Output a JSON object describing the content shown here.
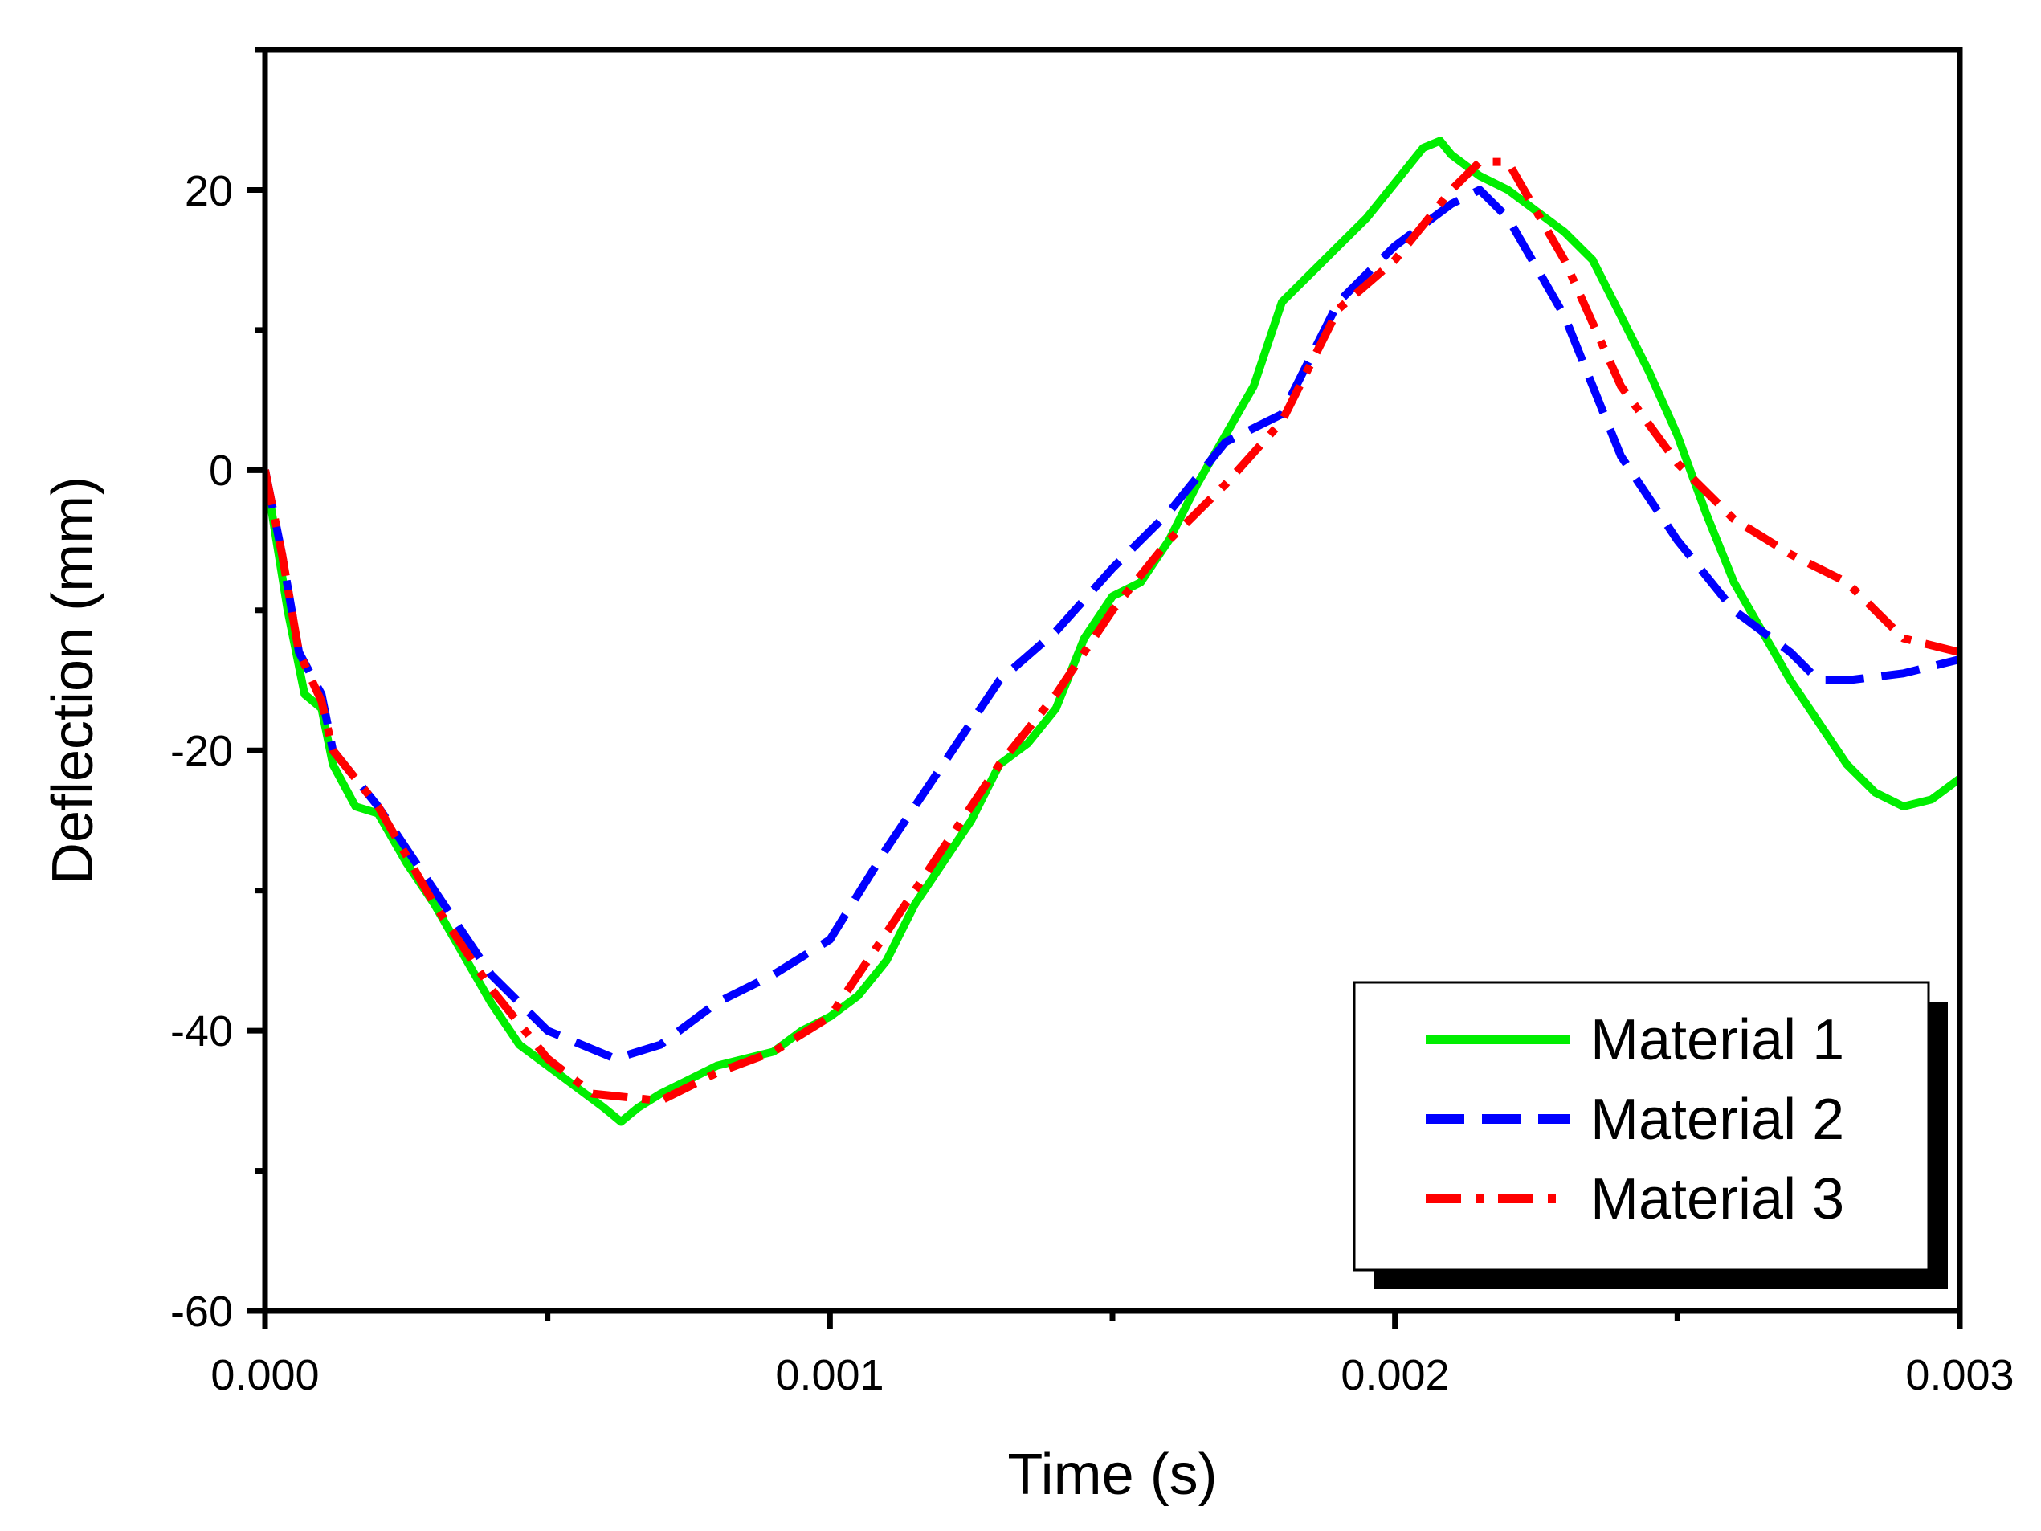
{
  "chart_data": {
    "type": "line",
    "title": "",
    "xlabel": "Time (s)",
    "ylabel": "Deflection (mm)",
    "xlim": [
      0,
      0.003
    ],
    "ylim": [
      -60,
      30
    ],
    "xticks": [
      0.0,
      0.001,
      0.002,
      0.003
    ],
    "xtick_labels": [
      "0.000",
      "0.001",
      "0.002",
      "0.003"
    ],
    "yticks": [
      -60,
      -40,
      -20,
      0,
      20
    ],
    "ytick_labels": [
      "-60",
      "-40",
      "-20",
      "0",
      "20"
    ],
    "grid": false,
    "legend_position": "bottom-right",
    "series": [
      {
        "name": "Material 1",
        "color": "#00ee00",
        "dash": "solid",
        "points": [
          [
            0.0,
            0.0
          ],
          [
            4e-05,
            -10.0
          ],
          [
            7e-05,
            -16.0
          ],
          [
            0.0001,
            -17.0
          ],
          [
            0.00012,
            -21.0
          ],
          [
            0.00016,
            -24.0
          ],
          [
            0.0002,
            -24.5
          ],
          [
            0.00025,
            -28.0
          ],
          [
            0.0003,
            -31.0
          ],
          [
            0.00035,
            -34.5
          ],
          [
            0.0004,
            -38.0
          ],
          [
            0.00045,
            -41.0
          ],
          [
            0.0005,
            -42.5
          ],
          [
            0.00055,
            -44.0
          ],
          [
            0.0006,
            -45.5
          ],
          [
            0.00063,
            -46.5
          ],
          [
            0.00066,
            -45.5
          ],
          [
            0.0007,
            -44.5
          ],
          [
            0.00075,
            -43.5
          ],
          [
            0.0008,
            -42.5
          ],
          [
            0.00085,
            -42.0
          ],
          [
            0.0009,
            -41.5
          ],
          [
            0.00095,
            -40.0
          ],
          [
            0.001,
            -39.0
          ],
          [
            0.00105,
            -37.5
          ],
          [
            0.0011,
            -35.0
          ],
          [
            0.00115,
            -31.0
          ],
          [
            0.0012,
            -28.0
          ],
          [
            0.00125,
            -25.0
          ],
          [
            0.0013,
            -21.0
          ],
          [
            0.00135,
            -19.5
          ],
          [
            0.0014,
            -17.0
          ],
          [
            0.00145,
            -12.0
          ],
          [
            0.0015,
            -9.0
          ],
          [
            0.00155,
            -8.0
          ],
          [
            0.0016,
            -5.0
          ],
          [
            0.00165,
            -1.0
          ],
          [
            0.0017,
            2.5
          ],
          [
            0.00175,
            6.0
          ],
          [
            0.0018,
            12.0
          ],
          [
            0.00185,
            14.0
          ],
          [
            0.0019,
            16.0
          ],
          [
            0.00195,
            18.0
          ],
          [
            0.002,
            20.5
          ],
          [
            0.00205,
            23.0
          ],
          [
            0.00208,
            23.5
          ],
          [
            0.0021,
            22.5
          ],
          [
            0.00215,
            21.0
          ],
          [
            0.0022,
            20.0
          ],
          [
            0.00225,
            18.5
          ],
          [
            0.0023,
            17.0
          ],
          [
            0.00235,
            15.0
          ],
          [
            0.0024,
            11.0
          ],
          [
            0.00245,
            7.0
          ],
          [
            0.0025,
            2.5
          ],
          [
            0.00255,
            -3.0
          ],
          [
            0.0026,
            -8.0
          ],
          [
            0.00265,
            -11.5
          ],
          [
            0.0027,
            -15.0
          ],
          [
            0.00275,
            -18.0
          ],
          [
            0.0028,
            -21.0
          ],
          [
            0.00285,
            -23.0
          ],
          [
            0.0029,
            -24.0
          ],
          [
            0.00295,
            -23.5
          ],
          [
            0.003,
            -22.0
          ]
        ]
      },
      {
        "name": "Material 2",
        "color": "#0000ff",
        "dash": "dashed",
        "points": [
          [
            0.0,
            0.0
          ],
          [
            3e-05,
            -6.0
          ],
          [
            6e-05,
            -13.0
          ],
          [
            0.0001,
            -16.0
          ],
          [
            0.00012,
            -20.0
          ],
          [
            0.0002,
            -24.0
          ],
          [
            0.0003,
            -30.0
          ],
          [
            0.0004,
            -36.0
          ],
          [
            0.0005,
            -40.0
          ],
          [
            0.00062,
            -42.0
          ],
          [
            0.0007,
            -41.0
          ],
          [
            0.0008,
            -38.0
          ],
          [
            0.0009,
            -36.0
          ],
          [
            0.001,
            -33.5
          ],
          [
            0.0011,
            -27.0
          ],
          [
            0.0012,
            -21.0
          ],
          [
            0.0013,
            -15.0
          ],
          [
            0.0014,
            -11.5
          ],
          [
            0.0015,
            -7.0
          ],
          [
            0.0016,
            -3.0
          ],
          [
            0.0017,
            2.0
          ],
          [
            0.0018,
            4.0
          ],
          [
            0.0019,
            12.0
          ],
          [
            0.002,
            16.0
          ],
          [
            0.0021,
            19.0
          ],
          [
            0.00215,
            20.0
          ],
          [
            0.0022,
            18.0
          ],
          [
            0.0023,
            11.0
          ],
          [
            0.0024,
            1.0
          ],
          [
            0.0025,
            -5.0
          ],
          [
            0.0026,
            -10.0
          ],
          [
            0.0027,
            -13.0
          ],
          [
            0.00275,
            -15.0
          ],
          [
            0.0028,
            -15.0
          ],
          [
            0.0029,
            -14.5
          ],
          [
            0.003,
            -13.5
          ]
        ]
      },
      {
        "name": "Material 3",
        "color": "#ff0000",
        "dash": "dashdot",
        "points": [
          [
            0.0,
            0.0
          ],
          [
            3e-05,
            -6.0
          ],
          [
            6e-05,
            -13.0
          ],
          [
            0.0001,
            -16.5
          ],
          [
            0.00012,
            -20.0
          ],
          [
            0.0002,
            -24.0
          ],
          [
            0.0003,
            -31.0
          ],
          [
            0.0004,
            -37.0
          ],
          [
            0.0005,
            -42.0
          ],
          [
            0.00058,
            -44.5
          ],
          [
            0.0007,
            -45.0
          ],
          [
            0.0008,
            -43.0
          ],
          [
            0.0009,
            -41.5
          ],
          [
            0.001,
            -39.0
          ],
          [
            0.0011,
            -33.0
          ],
          [
            0.0012,
            -27.0
          ],
          [
            0.0013,
            -21.0
          ],
          [
            0.0014,
            -16.0
          ],
          [
            0.0015,
            -10.0
          ],
          [
            0.0016,
            -5.0
          ],
          [
            0.0017,
            -1.0
          ],
          [
            0.0018,
            3.5
          ],
          [
            0.0019,
            11.5
          ],
          [
            0.002,
            15.0
          ],
          [
            0.0021,
            20.0
          ],
          [
            0.00215,
            22.0
          ],
          [
            0.0022,
            22.0
          ],
          [
            0.0023,
            15.0
          ],
          [
            0.0024,
            6.0
          ],
          [
            0.0025,
            0.5
          ],
          [
            0.0026,
            -3.5
          ],
          [
            0.0027,
            -6.0
          ],
          [
            0.0028,
            -8.0
          ],
          [
            0.0029,
            -12.0
          ],
          [
            0.003,
            -13.0
          ]
        ]
      }
    ]
  }
}
